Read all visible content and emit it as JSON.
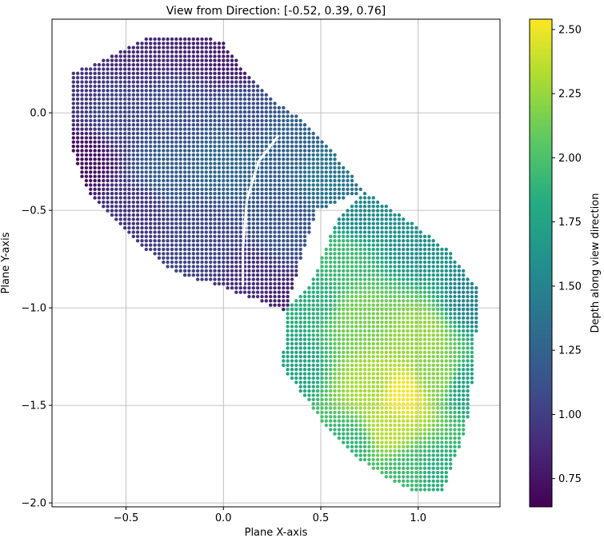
{
  "chart_data": {
    "type": "scatter",
    "title": "View from Direction: [-0.52, 0.39, 0.76]",
    "xlabel": "Plane X-axis",
    "ylabel": "Plane Y-axis",
    "xlim": [
      -0.88,
      1.42
    ],
    "ylim": [
      -2.02,
      0.48
    ],
    "xticks": [
      -0.5,
      0.0,
      0.5,
      1.0
    ],
    "xtick_labels": [
      "−0.5",
      "0.0",
      "0.5",
      "1.0"
    ],
    "yticks": [
      0.0,
      -0.5,
      -1.0,
      -1.5,
      -2.0
    ],
    "ytick_labels": [
      "0.0",
      "−0.5",
      "−1.0",
      "−1.5",
      "−2.0"
    ],
    "grid": true,
    "colormap": "viridis",
    "colorbar": {
      "label": "Depth along view direction",
      "range": [
        0.64,
        2.54
      ],
      "ticks": [
        0.75,
        1.0,
        1.25,
        1.5,
        1.75,
        2.0,
        2.25,
        2.5
      ],
      "tick_labels": [
        "0.75",
        "1.00",
        "1.25",
        "1.50",
        "1.75",
        "2.00",
        "2.25",
        "2.50"
      ]
    },
    "regions": [
      {
        "name": "upper-slab",
        "outline": [
          [
            -0.78,
            0.2
          ],
          [
            -0.52,
            0.32
          ],
          [
            -0.35,
            0.4
          ],
          [
            -0.12,
            0.4
          ],
          [
            0.0,
            0.36
          ],
          [
            0.12,
            0.2
          ],
          [
            0.28,
            0.05
          ],
          [
            0.42,
            -0.05
          ],
          [
            0.58,
            -0.22
          ],
          [
            0.72,
            -0.4
          ],
          [
            0.48,
            -0.5
          ],
          [
            0.4,
            -0.75
          ],
          [
            0.32,
            -1.02
          ],
          [
            0.15,
            -0.95
          ],
          [
            -0.05,
            -0.88
          ],
          [
            -0.25,
            -0.82
          ],
          [
            -0.4,
            -0.7
          ],
          [
            -0.55,
            -0.55
          ],
          [
            -0.7,
            -0.4
          ],
          [
            -0.78,
            -0.18
          ]
        ],
        "depth_points": [
          [
            -0.75,
            0.15,
            0.95
          ],
          [
            -0.45,
            0.32,
            0.88
          ],
          [
            -0.15,
            0.38,
            0.85
          ],
          [
            0.05,
            0.28,
            0.8
          ],
          [
            -0.72,
            -0.25,
            0.72
          ],
          [
            -0.45,
            -0.5,
            0.95
          ],
          [
            -0.55,
            0.0,
            1.05
          ],
          [
            -0.25,
            0.0,
            1.1
          ],
          [
            0.1,
            0.0,
            1.12
          ],
          [
            -0.3,
            -0.3,
            1.22
          ],
          [
            0.0,
            -0.25,
            1.3
          ],
          [
            0.35,
            -0.15,
            1.25
          ],
          [
            0.55,
            -0.3,
            1.4
          ],
          [
            -0.1,
            -0.65,
            1.05
          ],
          [
            0.15,
            -0.85,
            0.9
          ],
          [
            0.3,
            -1.0,
            0.82
          ],
          [
            0.3,
            -0.6,
            1.15
          ]
        ]
      },
      {
        "name": "lower-slab",
        "outline": [
          [
            0.45,
            -0.88
          ],
          [
            0.58,
            -0.55
          ],
          [
            0.72,
            -0.4
          ],
          [
            0.95,
            -0.55
          ],
          [
            1.15,
            -0.7
          ],
          [
            1.32,
            -0.92
          ],
          [
            1.3,
            -1.1
          ],
          [
            1.28,
            -1.35
          ],
          [
            1.25,
            -1.6
          ],
          [
            1.18,
            -1.8
          ],
          [
            1.12,
            -1.95
          ],
          [
            1.0,
            -1.95
          ],
          [
            0.88,
            -1.9
          ],
          [
            0.7,
            -1.78
          ],
          [
            0.52,
            -1.6
          ],
          [
            0.3,
            -1.3
          ],
          [
            0.33,
            -1.0
          ]
        ],
        "depth_points": [
          [
            0.45,
            -0.95,
            1.85
          ],
          [
            0.7,
            -0.5,
            1.55
          ],
          [
            1.0,
            -0.65,
            1.6
          ],
          [
            1.3,
            -0.95,
            1.5
          ],
          [
            1.25,
            -1.4,
            1.75
          ],
          [
            1.1,
            -1.85,
            1.85
          ],
          [
            0.95,
            -1.85,
            1.95
          ],
          [
            0.65,
            -1.7,
            1.9
          ],
          [
            0.35,
            -1.3,
            1.75
          ],
          [
            0.7,
            -1.05,
            2.15
          ],
          [
            1.0,
            -1.15,
            2.25
          ],
          [
            0.92,
            -1.45,
            2.52
          ],
          [
            0.75,
            -1.4,
            2.3
          ],
          [
            1.1,
            -1.35,
            2.2
          ],
          [
            0.85,
            -1.62,
            2.35
          ],
          [
            0.6,
            -0.75,
            1.95
          ]
        ]
      }
    ],
    "gap_line": [
      [
        0.28,
        -0.12
      ],
      [
        0.18,
        -0.25
      ],
      [
        0.12,
        -0.45
      ],
      [
        0.1,
        -0.7
      ],
      [
        0.1,
        -0.88
      ]
    ]
  }
}
